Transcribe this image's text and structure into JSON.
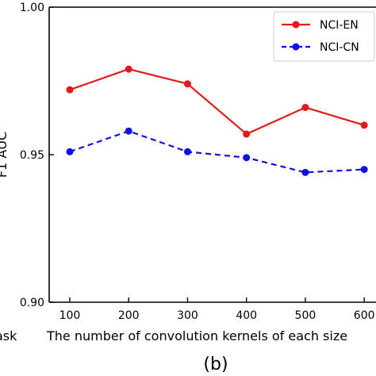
{
  "chart_data": {
    "type": "line",
    "title": "",
    "xlabel": "The number of convolution kernels of each size",
    "ylabel": "F1 AUC",
    "left_fragment": "ask",
    "panel_label": "(b)",
    "x": [
      100,
      200,
      300,
      400,
      500,
      600
    ],
    "x_tick_labels": [
      "100",
      "200",
      "300",
      "400",
      "500",
      "600"
    ],
    "y_tick_labels": [
      "0.90",
      "0.95",
      "1.00"
    ],
    "y_ticks": [
      0.9,
      0.95,
      1.0
    ],
    "ylim": [
      0.9,
      1.0
    ],
    "xlim": [
      65,
      620
    ],
    "grid": false,
    "legend_position": "top-right",
    "series": [
      {
        "name": "NCI-EN",
        "color": "#e31a1c",
        "line_style": "solid",
        "values": [
          0.972,
          0.979,
          0.974,
          0.957,
          0.966,
          0.96
        ]
      },
      {
        "name": "NCI-CN",
        "color": "#1010e0",
        "line_style": "dashed",
        "values": [
          0.951,
          0.958,
          0.951,
          0.949,
          0.944,
          0.945
        ]
      }
    ]
  }
}
